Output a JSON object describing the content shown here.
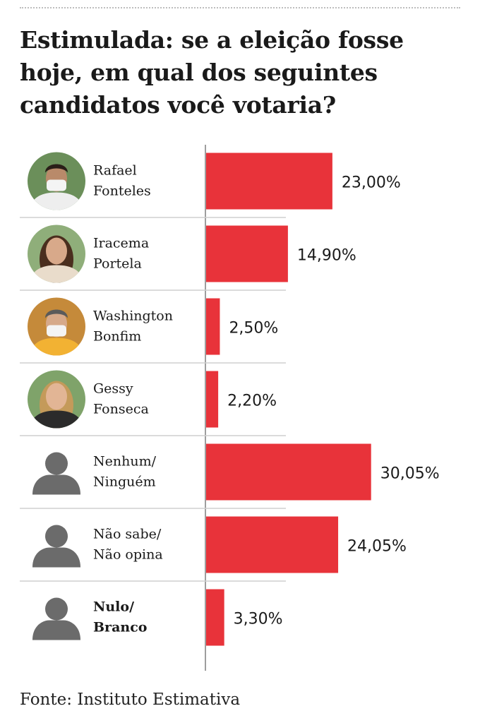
{
  "title": "Estimulada: se a eleição fosse hoje, em qual dos seguintes candidatos você votaria?",
  "source": "Fonte: Instituto Estimativa",
  "colors": {
    "bar": "#e8333a",
    "axis": "#9e9e9e",
    "separator": "#cfcfcf",
    "silhouette": "#6b6b6b"
  },
  "chart_data": {
    "type": "bar",
    "orientation": "horizontal",
    "categories": [
      "Rafael Fonteles",
      "Iracema Portela",
      "Washington Bonfim",
      "Gessy Fonseca",
      "Nenhum/ Ninguém",
      "Não sabe/ Não opina",
      "Nulo/ Branco"
    ],
    "label_lines": [
      [
        "Rafael",
        "Fonteles"
      ],
      [
        "Iracema",
        "Portela"
      ],
      [
        "Washington",
        "Bonfim"
      ],
      [
        "Gessy",
        "Fonseca"
      ],
      [
        "Nenhum/",
        "Ninguém"
      ],
      [
        "Não sabe/",
        "Não opina"
      ],
      [
        "Nulo/",
        "Branco"
      ]
    ],
    "bold_labels": [
      false,
      false,
      false,
      false,
      false,
      false,
      true
    ],
    "avatars": [
      "photo-rafael",
      "photo-iracema",
      "photo-washington",
      "photo-gessy",
      "person-silhouette-icon",
      "person-silhouette-icon",
      "person-silhouette-icon"
    ],
    "values": [
      23.0,
      14.9,
      2.5,
      2.2,
      30.05,
      24.05,
      3.3
    ],
    "value_labels": [
      "23,00%",
      "14,90%",
      "2,50%",
      "2,20%",
      "30,05%",
      "24,05%",
      "3,30%"
    ],
    "xlim": [
      0,
      31.5
    ],
    "grid": false,
    "legend": "none"
  }
}
